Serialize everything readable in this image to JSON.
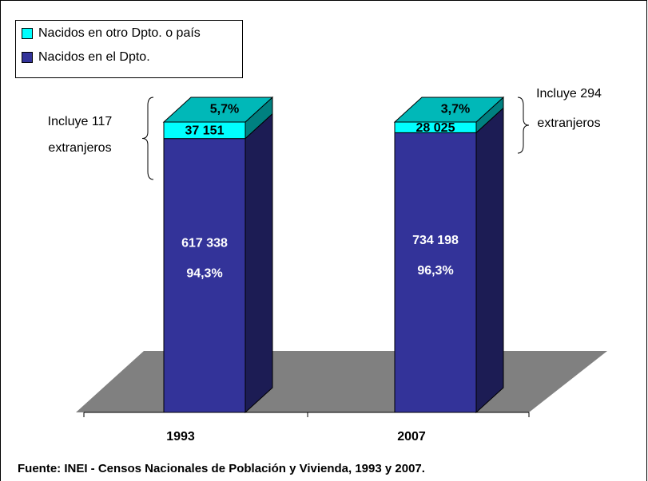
{
  "chart_data": {
    "type": "bar3d_stacked",
    "categories": [
      "1993",
      "2007"
    ],
    "series": [
      {
        "name": "Nacidos en el Dpto.",
        "color": "#333399",
        "values": [
          617338,
          734198
        ],
        "value_labels": [
          "617 338",
          "734 198"
        ],
        "percent_labels": [
          "94,3%",
          "96,3%"
        ]
      },
      {
        "name": "Nacidos en otro Dpto. o país",
        "color": "#00ffff",
        "values": [
          37151,
          28025
        ],
        "value_labels": [
          "37 151",
          "28 025"
        ],
        "percent_labels": [
          "5,7%",
          "3,7%"
        ]
      }
    ],
    "annotations": [
      {
        "lines": [
          "Incluye 117",
          "extranjeros"
        ]
      },
      {
        "lines": [
          "Incluye 294",
          "extranjeros"
        ]
      }
    ],
    "source": "Fuente: INEI - Censos Nacionales de Población y Vivienda, 1993 y 2007."
  }
}
